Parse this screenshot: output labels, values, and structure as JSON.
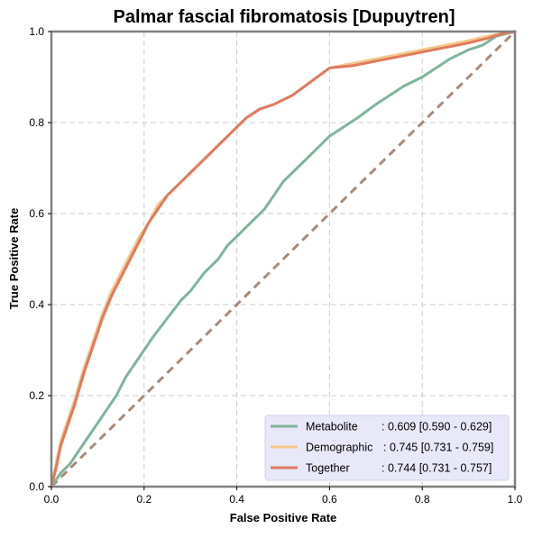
{
  "chart_data": {
    "type": "line",
    "title": "Palmar fascial fibromatosis [Dupuytren]",
    "xlabel": "False Positive Rate",
    "ylabel": "True Positive Rate",
    "xlim": [
      0,
      1
    ],
    "ylim": [
      0,
      1
    ],
    "x_ticks": [
      "0.0",
      "0.2",
      "0.4",
      "0.6",
      "0.8",
      "1.0"
    ],
    "y_ticks": [
      "0.0",
      "0.2",
      "0.4",
      "0.6",
      "0.8",
      "1.0"
    ],
    "grid": true,
    "legend_position": "bottom-right",
    "series": [
      {
        "name": "Metabolite",
        "label_text": ": 0.609 [0.590 - 0.629]",
        "color": "#7fb59a",
        "x": [
          0,
          0.02,
          0.04,
          0.06,
          0.08,
          0.1,
          0.12,
          0.14,
          0.16,
          0.18,
          0.2,
          0.22,
          0.25,
          0.28,
          0.3,
          0.33,
          0.36,
          0.38,
          0.4,
          0.43,
          0.46,
          0.48,
          0.5,
          0.53,
          0.56,
          0.58,
          0.6,
          0.63,
          0.66,
          0.7,
          0.73,
          0.76,
          0.8,
          0.83,
          0.86,
          0.9,
          0.93,
          0.96,
          1.0
        ],
        "y": [
          0,
          0.03,
          0.05,
          0.08,
          0.11,
          0.14,
          0.17,
          0.2,
          0.24,
          0.27,
          0.3,
          0.33,
          0.37,
          0.41,
          0.43,
          0.47,
          0.5,
          0.53,
          0.55,
          0.58,
          0.61,
          0.64,
          0.67,
          0.7,
          0.73,
          0.75,
          0.77,
          0.79,
          0.81,
          0.84,
          0.86,
          0.88,
          0.9,
          0.92,
          0.94,
          0.96,
          0.97,
          0.99,
          1.0
        ]
      },
      {
        "name": "Demographic",
        "label_text": ": 0.745 [0.731 - 0.759]",
        "color": "#f5c98a",
        "x": [
          0,
          0.01,
          0.02,
          0.03,
          0.05,
          0.07,
          0.09,
          0.11,
          0.13,
          0.15,
          0.17,
          0.19,
          0.21,
          0.23,
          0.25,
          0.27,
          0.3,
          0.33,
          0.36,
          0.39,
          0.42,
          0.45,
          0.48,
          0.52,
          0.56,
          0.6,
          0.65,
          0.7,
          0.75,
          0.8,
          0.85,
          0.9,
          0.94,
          0.97,
          1.0
        ],
        "y": [
          0,
          0.05,
          0.1,
          0.13,
          0.19,
          0.26,
          0.32,
          0.38,
          0.43,
          0.47,
          0.51,
          0.55,
          0.58,
          0.62,
          0.64,
          0.66,
          0.69,
          0.72,
          0.75,
          0.78,
          0.81,
          0.83,
          0.84,
          0.86,
          0.89,
          0.92,
          0.93,
          0.94,
          0.95,
          0.96,
          0.97,
          0.98,
          0.99,
          0.995,
          1.0
        ]
      },
      {
        "name": "Together",
        "label_text": ": 0.744 [0.731 - 0.757]",
        "color": "#e07a5f",
        "x": [
          0,
          0.01,
          0.02,
          0.03,
          0.05,
          0.07,
          0.09,
          0.11,
          0.13,
          0.15,
          0.17,
          0.19,
          0.21,
          0.23,
          0.25,
          0.27,
          0.3,
          0.33,
          0.36,
          0.39,
          0.42,
          0.45,
          0.48,
          0.52,
          0.56,
          0.6,
          0.65,
          0.7,
          0.75,
          0.8,
          0.85,
          0.9,
          0.94,
          0.97,
          1.0
        ],
        "y": [
          0,
          0.04,
          0.09,
          0.12,
          0.18,
          0.25,
          0.31,
          0.37,
          0.42,
          0.46,
          0.5,
          0.54,
          0.58,
          0.61,
          0.64,
          0.66,
          0.69,
          0.72,
          0.75,
          0.78,
          0.81,
          0.83,
          0.84,
          0.86,
          0.89,
          0.92,
          0.925,
          0.935,
          0.945,
          0.955,
          0.965,
          0.975,
          0.985,
          0.995,
          1.0
        ]
      }
    ],
    "reference_line": {
      "x": [
        0,
        1
      ],
      "y": [
        0,
        1
      ],
      "color": "#a88b7a",
      "style": "dashed"
    }
  }
}
